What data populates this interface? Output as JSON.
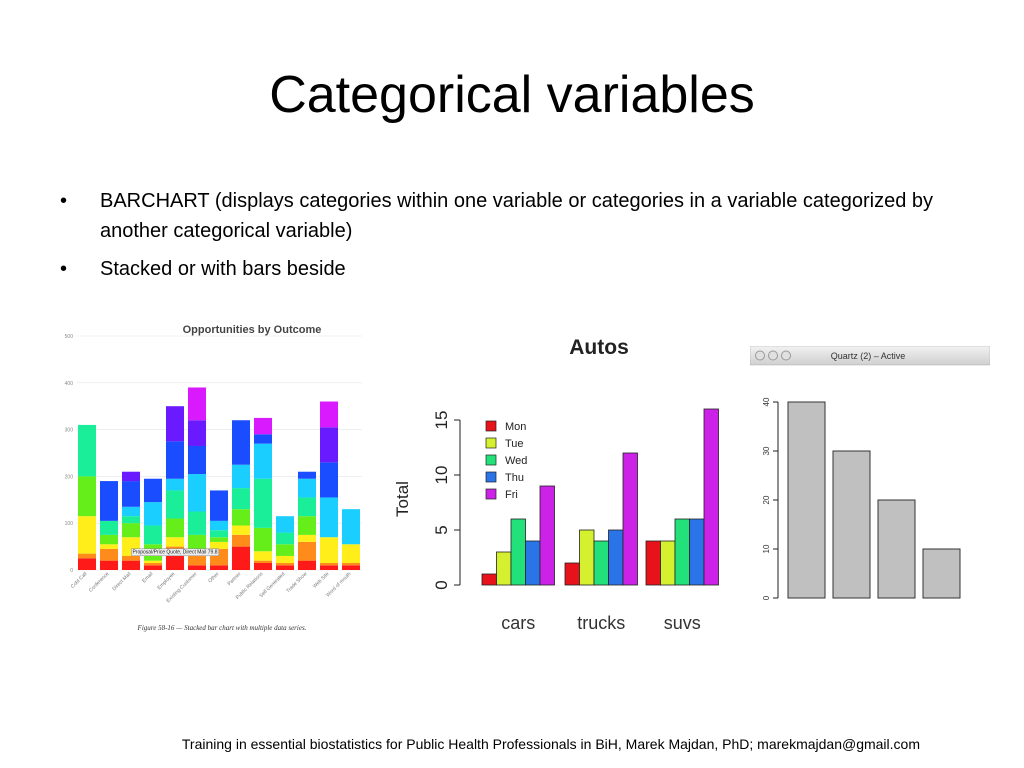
{
  "slide": {
    "title": "Categorical variables",
    "bullets": [
      "BARCHART (displays categories within one variable or categories in a variable categorized by another categorical variable)",
      "Stacked or with bars beside"
    ],
    "bullet_glyph": "•",
    "footer": "Training in essential biostatistics for Public Health Professionals in BiH, Marek Majdan, PhD; marekmajdan@gmail.com"
  },
  "chart_data": [
    {
      "type": "bar",
      "stacked": true,
      "title": "Opportunities by Outcome",
      "caption": "Figure 58-16 — Stacked bar chart with multiple data series.",
      "yticks": [
        "0",
        "100",
        "200",
        "300",
        "400",
        "500"
      ],
      "ylim": [
        0,
        500
      ],
      "categories": [
        "Cold Call",
        "Conference",
        "Direct Mail",
        "Email",
        "Employee",
        "Existing Customer",
        "Other",
        "Partner",
        "Public Relations",
        "Self Generated",
        "Trade Show",
        "Web Site",
        "Word of mouth"
      ],
      "series": [
        {
          "values": [
            25,
            20,
            20,
            10,
            40,
            10,
            10,
            50,
            15,
            10,
            20,
            10,
            10
          ],
          "color": "#ff1a1a"
        },
        {
          "values": [
            10,
            25,
            10,
            5,
            10,
            20,
            35,
            25,
            5,
            5,
            40,
            5,
            5
          ],
          "color": "#ff8c1a"
        },
        {
          "values": [
            80,
            10,
            40,
            5,
            20,
            15,
            15,
            20,
            20,
            15,
            15,
            55,
            40
          ],
          "color": "#ffee1a"
        },
        {
          "values": [
            85,
            20,
            30,
            35,
            40,
            30,
            10,
            35,
            50,
            25,
            40,
            0,
            0
          ],
          "color": "#66ee1a"
        },
        {
          "values": [
            110,
            30,
            15,
            40,
            60,
            50,
            15,
            45,
            105,
            25,
            40,
            0,
            0
          ],
          "color": "#1aee99"
        },
        {
          "values": [
            0,
            0,
            20,
            50,
            25,
            80,
            20,
            50,
            75,
            35,
            40,
            85,
            75
          ],
          "color": "#1acfff"
        },
        {
          "values": [
            0,
            85,
            55,
            50,
            80,
            60,
            65,
            95,
            20,
            0,
            15,
            75,
            0
          ],
          "color": "#1a4dff"
        },
        {
          "values": [
            0,
            0,
            20,
            0,
            75,
            55,
            0,
            0,
            0,
            0,
            0,
            75,
            0
          ],
          "color": "#6a1aff"
        },
        {
          "values": [
            0,
            0,
            0,
            0,
            0,
            70,
            0,
            0,
            35,
            0,
            0,
            55,
            0
          ],
          "color": "#d91aff"
        }
      ],
      "annotation": "Proposal/Price Quote, Direct Mail 79.8"
    },
    {
      "type": "bar",
      "grouped": true,
      "title": "Autos",
      "ylabel": "Total",
      "yticks": [
        "0",
        "5",
        "10",
        "15"
      ],
      "ylim": [
        0,
        16
      ],
      "categories": [
        "cars",
        "trucks",
        "suvs"
      ],
      "series": [
        {
          "name": "Mon",
          "values": [
            1,
            2,
            4
          ],
          "color": "#e8121a"
        },
        {
          "name": "Tue",
          "values": [
            3,
            5,
            4
          ],
          "color": "#d4f02e"
        },
        {
          "name": "Wed",
          "values": [
            6,
            4,
            6
          ],
          "color": "#22e07a"
        },
        {
          "name": "Thu",
          "values": [
            4,
            5,
            6
          ],
          "color": "#2a74e8"
        },
        {
          "name": "Fri",
          "values": [
            9,
            12,
            16
          ],
          "color": "#cc22e8"
        }
      ]
    },
    {
      "type": "bar",
      "window_title": "Quartz (2) – Active",
      "yticks": [
        "0",
        "10",
        "20",
        "30",
        "40"
      ],
      "ylim": [
        0,
        40
      ],
      "values": [
        40,
        30,
        20,
        10
      ]
    }
  ]
}
